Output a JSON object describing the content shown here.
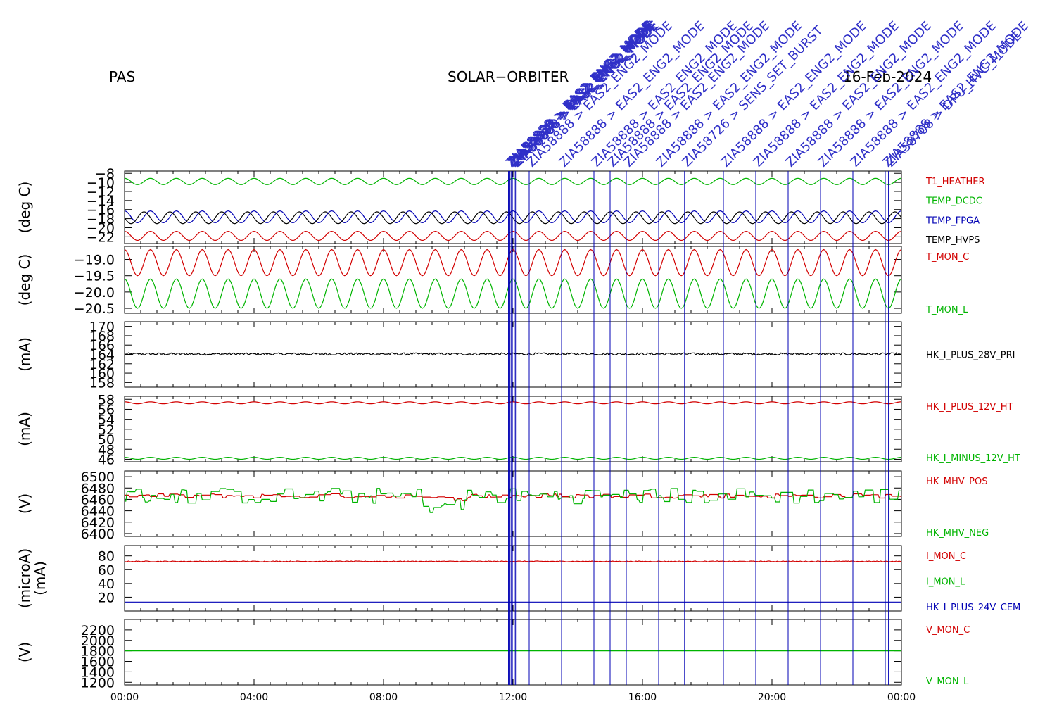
{
  "header": {
    "instrument": "PAS",
    "mission": "SOLAR−ORBITER",
    "date": "16-Feb-2024"
  },
  "colors": {
    "red": "#d20000",
    "green": "#00b400",
    "blue": "#0000b4",
    "black": "#000000"
  },
  "x_ticks": [
    "00:00",
    "04:00",
    "08:00",
    "12:00",
    "16:00",
    "20:00",
    "00:00"
  ],
  "events": [
    {
      "time": 11.86,
      "label": "ZIA58888 > EAS2_ENG2_MODE"
    },
    {
      "time": 11.9,
      "label": "ZIA58888 > EAS2_ENG2_MODE"
    },
    {
      "time": 11.94,
      "label": "ZIA58877 > EAS2_ENG2_MODE"
    },
    {
      "time": 11.98,
      "label": "ZIA58888 > EAS2_ENG2_MODE"
    },
    {
      "time": 12.04,
      "label": "ZIA58888 > EAS2_ENG2_MODE"
    },
    {
      "time": 12.08,
      "label": "ZIA58888 > EAS2_ENG2_MODE"
    },
    {
      "time": 12.5,
      "label": "ZIA58888 > EAS2_ENG2_MODE"
    },
    {
      "time": 13.5,
      "label": "ZIA58888 > EAS2_ENG2_MODE"
    },
    {
      "time": 14.5,
      "label": "ZIA58888 > EAS2_ENG2_MODE"
    },
    {
      "time": 15.0,
      "label": "ZIA58888 > EAS2_ENG2_MODE"
    },
    {
      "time": 15.5,
      "label": "ZIA58888 > EAS2_ENG2_MODE"
    },
    {
      "time": 16.5,
      "label": "ZIA58888 > EAS2_ENG2_MODE"
    },
    {
      "time": 17.3,
      "label": "ZIA58726 > SENS_SET_BURST"
    },
    {
      "time": 18.5,
      "label": "ZIA58888 > EAS2_ENG2_MODE"
    },
    {
      "time": 19.5,
      "label": "ZIA58888 > EAS2_ENG2_MODE"
    },
    {
      "time": 20.5,
      "label": "ZIA58888 > EAS2_ENG2_MODE"
    },
    {
      "time": 21.5,
      "label": "ZIA58888 > EAS2_ENG2_MODE"
    },
    {
      "time": 22.5,
      "label": "ZIA58888 > EAS2_ENG2_MODE"
    },
    {
      "time": 23.5,
      "label": "ZIA58888 > EAS2_ENG2_MODE"
    },
    {
      "time": 23.6,
      "label": "ZIA58708 > DPU_HVC_MODE"
    }
  ],
  "chart_data": [
    {
      "type": "line",
      "ylabel": "(deg C)",
      "ylim": [
        -23.5,
        -7.5
      ],
      "yticks": [
        -8,
        -10,
        -12,
        -14,
        -16,
        -18,
        -20,
        -22
      ],
      "ytick_labels": [
        "−8",
        "−10",
        "−12",
        "−14",
        "−16",
        "−18",
        "−20",
        "−22"
      ],
      "xlim": [
        0,
        24
      ],
      "series": [
        {
          "name": "T1_HEATHER",
          "color": "#d20000",
          "kind": "osc",
          "base": -21.8,
          "amp": 1.0,
          "period": 0.8
        },
        {
          "name": "TEMP_DCDC",
          "color": "#00b400",
          "kind": "osc",
          "base": -9.8,
          "amp": 0.7,
          "period": 0.8
        },
        {
          "name": "TEMP_FPGA",
          "color": "#0000b4",
          "kind": "osc",
          "base": -17.6,
          "amp": 1.3,
          "period": 0.8
        },
        {
          "name": "TEMP_HVPS",
          "color": "#000000",
          "kind": "osc",
          "base": -17.8,
          "amp": 1.3,
          "period": 0.8,
          "phase": 0.25
        }
      ]
    },
    {
      "type": "line",
      "ylabel": "(deg C)",
      "ylim": [
        -20.65,
        -18.6
      ],
      "yticks": [
        -19.0,
        -19.5,
        -20.0,
        -20.5
      ],
      "ytick_labels": [
        "−19.0",
        "−19.5",
        "−20.0",
        "−20.5"
      ],
      "xlim": [
        0,
        24
      ],
      "series": [
        {
          "name": "T_MON_C",
          "color": "#d20000",
          "kind": "osc",
          "base": -19.1,
          "amp": 0.4,
          "period": 0.8
        },
        {
          "name": "T_MON_L",
          "color": "#00b400",
          "kind": "osc",
          "base": -20.05,
          "amp": 0.45,
          "period": 0.8
        }
      ]
    },
    {
      "type": "line",
      "ylabel": "(mA)",
      "ylim": [
        157,
        171
      ],
      "yticks": [
        170,
        168,
        166,
        164,
        162,
        160,
        158
      ],
      "ytick_labels": [
        "170",
        "168",
        "166",
        "164",
        "162",
        "160",
        "158"
      ],
      "xlim": [
        0,
        24
      ],
      "series": [
        {
          "name": "HK_I_PLUS_28V_PRI",
          "color": "#000000",
          "kind": "flat",
          "base": 164.1,
          "noise": 0.25
        }
      ]
    },
    {
      "type": "line",
      "ylabel": "(mA)",
      "ylim": [
        45.5,
        58.6
      ],
      "yticks": [
        58,
        56,
        54,
        52,
        50,
        48,
        46
      ],
      "ytick_labels": [
        "58",
        "56",
        "54",
        "52",
        "50",
        "48",
        "46"
      ],
      "xlim": [
        0,
        24
      ],
      "series": [
        {
          "name": "HK_I_PLUS_12V_HT",
          "color": "#d20000",
          "kind": "osc",
          "base": 57.3,
          "amp": 0.2,
          "period": 0.8
        },
        {
          "name": "HK_I_MINUS_12V_HT",
          "color": "#00b400",
          "kind": "osc",
          "base": 46.2,
          "amp": 0.2,
          "period": 0.8
        }
      ]
    },
    {
      "type": "line",
      "ylabel": "(V)",
      "ylim": [
        6395,
        6510
      ],
      "yticks": [
        6500,
        6480,
        6460,
        6440,
        6420,
        6400
      ],
      "ytick_labels": [
        "6500",
        "6480",
        "6460",
        "6440",
        "6420",
        "6400"
      ],
      "xlim": [
        0,
        24
      ],
      "series": [
        {
          "name": "HK_MHV_POS",
          "color": "#d20000",
          "kind": "steps",
          "base": 6465,
          "noise": 4
        },
        {
          "name": "HK_MHV_NEG",
          "color": "#00b400",
          "kind": "steps",
          "base": 6462,
          "noise": 14
        }
      ]
    },
    {
      "type": "line",
      "ylabel": "(microA)",
      "ylabel2": "(mA)",
      "ylim": [
        0,
        95
      ],
      "yticks": [
        80,
        60,
        40,
        20
      ],
      "ytick_labels": [
        "80",
        "60",
        "40",
        "20"
      ],
      "xlim": [
        0,
        24
      ],
      "series": [
        {
          "name": "I_MON_C",
          "color": "#d20000",
          "kind": "flat",
          "base": 72,
          "noise": 0.6
        },
        {
          "name": "I_MON_L",
          "color": "#00b400",
          "kind": "none"
        },
        {
          "name": "HK_I_PLUS_24V_CEM",
          "color": "#0000b4",
          "kind": "flat",
          "base": 13,
          "noise": 0
        }
      ]
    },
    {
      "type": "line",
      "ylabel": "(V)",
      "ylim": [
        1150,
        2400
      ],
      "yticks": [
        2200,
        2000,
        1800,
        1600,
        1400,
        1200
      ],
      "ytick_labels": [
        "2200",
        "2000",
        "1800",
        "1600",
        "1400",
        "1200"
      ],
      "xlim": [
        0,
        24
      ],
      "series": [
        {
          "name": "V_MON_C",
          "color": "#d20000",
          "kind": "none"
        },
        {
          "name": "V_MON_L",
          "color": "#00b400",
          "kind": "flat",
          "base": 1800,
          "noise": 0
        }
      ]
    }
  ]
}
